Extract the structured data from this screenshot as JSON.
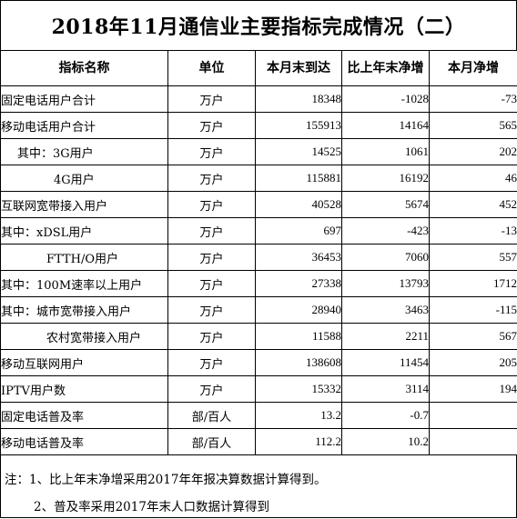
{
  "title": "2018年11月通信业主要指标完成情况（二）",
  "header": {
    "name": "指标名称",
    "unit": "单位",
    "current": "本月末到达",
    "yoy": "比上年末净增",
    "month": "本月净增"
  },
  "rows": [
    {
      "name": "固定电话用户合计",
      "unit": "万户",
      "current": "18348",
      "yoy": "-1028",
      "month": "-73"
    },
    {
      "name": "移动电话用户合计",
      "unit": "万户",
      "current": "155913",
      "yoy": "14164",
      "month": "565"
    },
    {
      "name": "其中：3G用户",
      "unit": "万户",
      "current": "14525",
      "yoy": "1061",
      "month": "202"
    },
    {
      "name": "4G用户",
      "unit": "万户",
      "current": "115881",
      "yoy": "16192",
      "month": "46"
    },
    {
      "name": "互联网宽带接入用户",
      "unit": "万户",
      "current": "40528",
      "yoy": "5674",
      "month": "452"
    },
    {
      "name": "其中：xDSL用户",
      "unit": "万户",
      "current": "697",
      "yoy": "-423",
      "month": "-13"
    },
    {
      "name": "FTTH/O用户",
      "unit": "万户",
      "current": "36453",
      "yoy": "7060",
      "month": "557"
    },
    {
      "name": "其中：100M速率以上用户",
      "unit": "万户",
      "current": "27338",
      "yoy": "13793",
      "month": "1712"
    },
    {
      "name": "其中：城市宽带接入用户",
      "unit": "万户",
      "current": "28940",
      "yoy": "3463",
      "month": "-115"
    },
    {
      "name": "农村宽带接入用户",
      "unit": "万户",
      "current": "11588",
      "yoy": "2211",
      "month": "567"
    },
    {
      "name": "移动互联网用户",
      "unit": "万户",
      "current": "138608",
      "yoy": "11454",
      "month": "205"
    },
    {
      "name": "IPTV用户数",
      "unit": "万户",
      "current": "15332",
      "yoy": "3114",
      "month": "194"
    },
    {
      "name": "固定电话普及率",
      "unit": "部/百人",
      "current": "13.2",
      "yoy": "-0.7",
      "month": ""
    },
    {
      "name": "移动电话普及率",
      "unit": "部/百人",
      "current": "112.2",
      "yoy": "10.2",
      "month": ""
    }
  ],
  "notes": [
    "注：1、比上年末净增采用2017年年报决算数据计算得到。",
    "2、普及率采用2017年末人口数据计算得到"
  ]
}
